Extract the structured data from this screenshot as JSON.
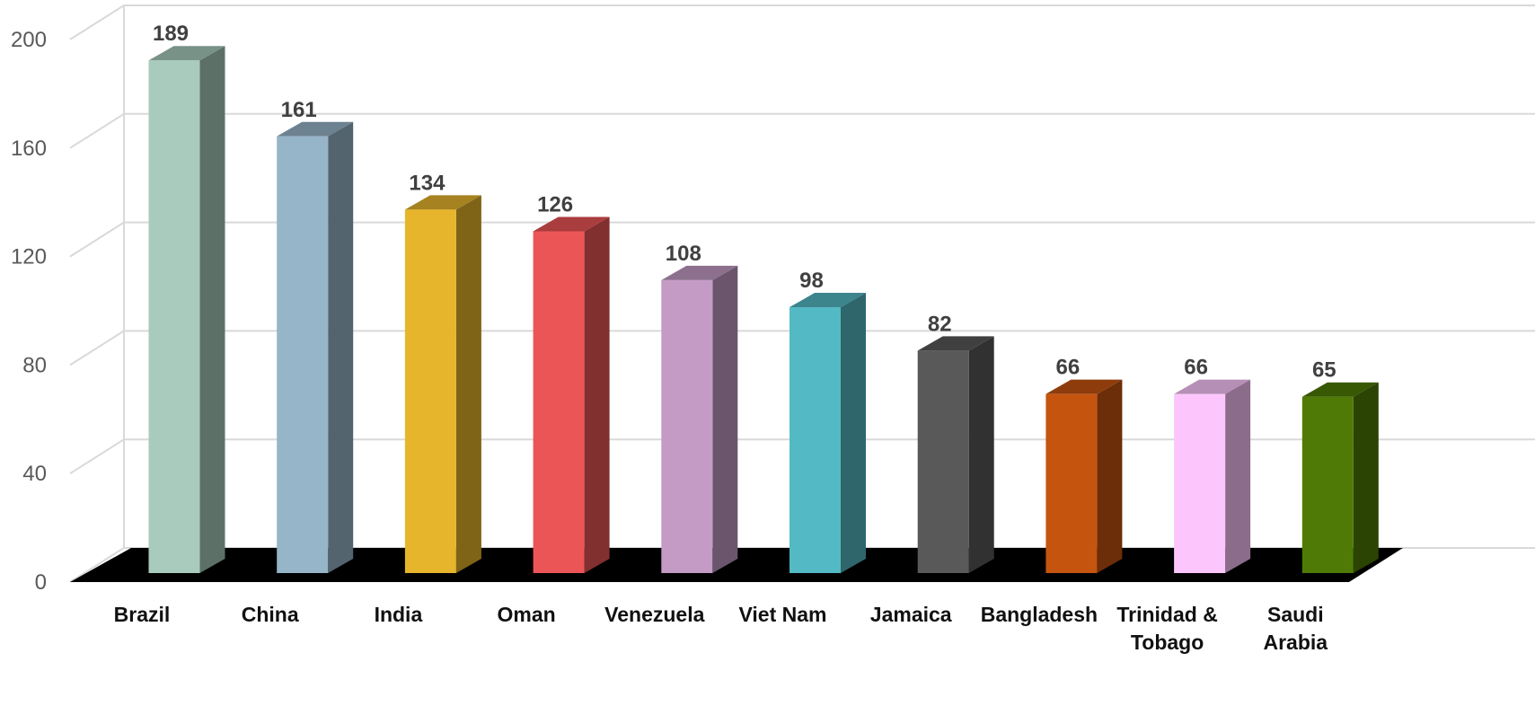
{
  "chart_data": {
    "type": "bar",
    "style": "3d-column",
    "title": "",
    "xlabel": "",
    "ylabel": "",
    "ylim": [
      0,
      200
    ],
    "yticks": [
      0,
      40,
      80,
      120,
      160,
      200
    ],
    "ytick_labels": [
      "0",
      "40",
      "80",
      "120",
      "160",
      "200"
    ],
    "grid": true,
    "legend": "none",
    "floor_color": "#000000",
    "categories": [
      {
        "label_lines": [
          "Brazil"
        ]
      },
      {
        "label_lines": [
          "China"
        ]
      },
      {
        "label_lines": [
          "India"
        ]
      },
      {
        "label_lines": [
          "Oman"
        ]
      },
      {
        "label_lines": [
          "Venezuela"
        ]
      },
      {
        "label_lines": [
          "Viet Nam"
        ]
      },
      {
        "label_lines": [
          "Jamaica"
        ]
      },
      {
        "label_lines": [
          "Bangladesh"
        ]
      },
      {
        "label_lines": [
          "Trinidad &",
          "Tobago"
        ]
      },
      {
        "label_lines": [
          "Saudi",
          "Arabia"
        ]
      }
    ],
    "values": [
      189,
      161,
      134,
      126,
      108,
      98,
      82,
      66,
      66,
      65
    ],
    "value_labels": [
      "189",
      "161",
      "134",
      "126",
      "108",
      "98",
      "82",
      "66",
      "66",
      "65"
    ],
    "colors": [
      "#a8cbbd",
      "#96b5c8",
      "#e6b52c",
      "#ec5556",
      "#c39bc4",
      "#53b9c4",
      "#595959",
      "#c5540f",
      "#fcc6fc",
      "#4f7a05"
    ]
  }
}
